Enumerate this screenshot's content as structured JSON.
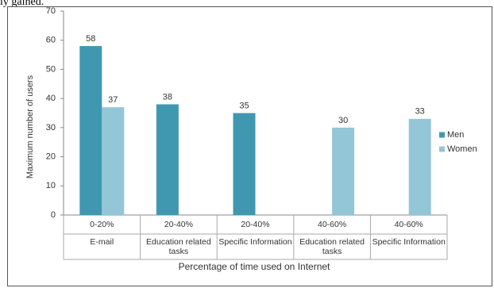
{
  "caption": "ly gained.",
  "chart_data": {
    "type": "bar",
    "categories": [
      [
        "0-20%",
        "E-mail"
      ],
      [
        "20-40%",
        "Education related tasks"
      ],
      [
        "20-40%",
        "Specific Information"
      ],
      [
        "40-60%",
        "Education related tasks"
      ],
      [
        "40-60%",
        "Specific Information"
      ]
    ],
    "series": [
      {
        "name": "Men",
        "color": "#3f98b0",
        "values": [
          58,
          38,
          35,
          null,
          null
        ]
      },
      {
        "name": "Women",
        "color": "#93c6d7",
        "values": [
          37,
          null,
          null,
          30,
          33
        ]
      }
    ],
    "ylabel": "Maximum  number of users",
    "xlabel": "Percentage of time used on Internet",
    "ylim": [
      0,
      70
    ],
    "yticks": [
      0,
      10,
      20,
      30,
      40,
      50,
      60,
      70
    ],
    "grid": false,
    "legend": "right"
  }
}
